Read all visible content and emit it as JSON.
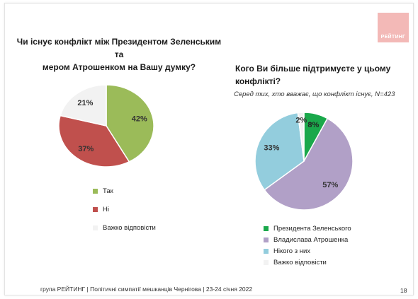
{
  "logo": {
    "text": "РЕЙТИНГ",
    "color": "#f3b9b7"
  },
  "q1": {
    "title_line1": "Чи існує конфлікт між Президентом Зеленським та",
    "title_line2": "мером Атрошенком на Вашу думку?"
  },
  "q2": {
    "title_line1": "Кого Ви більше підтримуєте у цьому",
    "title_line2": "конфлікті?",
    "note": "Серед тих, хто вважає, що конфлікт існує, N=423"
  },
  "chart_data": [
    {
      "type": "pie",
      "title": "Чи існує конфлікт між Президентом Зеленським та мером Атрошенком на Вашу думку?",
      "categories": [
        "Так",
        "Ні",
        "Важко відповісти"
      ],
      "values": [
        42,
        37,
        21
      ],
      "value_labels": [
        "42%",
        "37%",
        "21%"
      ],
      "colors": [
        "#9bbb59",
        "#c0504d",
        "#f2f2f2"
      ],
      "legend_position": "bottom"
    },
    {
      "type": "pie",
      "title": "Кого Ви більше підтримуєте у цьому конфлікті?",
      "categories": [
        "Президента Зеленського",
        "Владислава Атрошенка",
        "Нікого з них",
        "Важко відповісти"
      ],
      "values": [
        8,
        57,
        33,
        2
      ],
      "value_labels": [
        "8%",
        "57%",
        "33%",
        "2%"
      ],
      "colors": [
        "#1aa84b",
        "#b1a0c7",
        "#93cddd",
        "#f2f2f2"
      ],
      "legend_position": "bottom"
    }
  ],
  "footer": {
    "text": "група РЕЙТИНГ  | Політичні симпатії мешканців Чернігова | 23-24 січня 2022",
    "page": "18"
  }
}
